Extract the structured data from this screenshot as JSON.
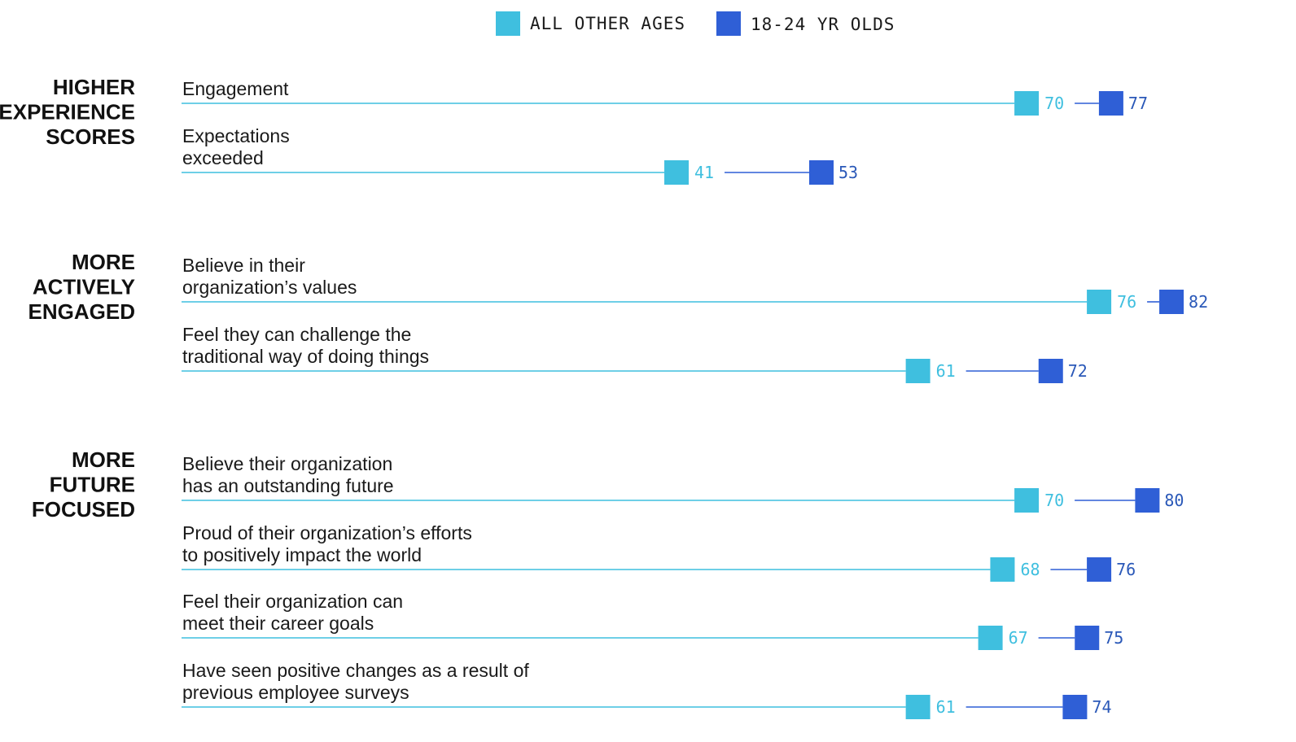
{
  "chart_data": {
    "type": "dot-plot",
    "xlim": [
      0,
      100
    ],
    "series": [
      {
        "name": "ALL OTHER AGES",
        "color": "#3fbfdf"
      },
      {
        "name": "18-24 YR OLDS",
        "color": "#2f5fd6"
      }
    ],
    "groups": [
      {
        "label": [
          "HIGHER",
          "EXPERIENCE",
          "SCORES"
        ],
        "rows": [
          {
            "label": [
              "Engagement"
            ],
            "values": [
              70,
              77
            ]
          },
          {
            "label": [
              "Expectations",
              "exceeded"
            ],
            "values": [
              41,
              53
            ]
          }
        ]
      },
      {
        "label": [
          "MORE",
          "ACTIVELY",
          "ENGAGED"
        ],
        "rows": [
          {
            "label": [
              "Believe in their",
              "organization’s values"
            ],
            "values": [
              76,
              82
            ]
          },
          {
            "label": [
              "Feel they can challenge the",
              "traditional way of doing things"
            ],
            "values": [
              61,
              72
            ]
          }
        ]
      },
      {
        "label": [
          "MORE",
          "FUTURE",
          "FOCUSED"
        ],
        "rows": [
          {
            "label": [
              "Believe their organization",
              "has an outstanding future"
            ],
            "values": [
              70,
              80
            ]
          },
          {
            "label": [
              "Proud of their organization’s efforts",
              "to positively impact the world"
            ],
            "values": [
              68,
              76
            ]
          },
          {
            "label": [
              "Feel their organization can",
              "meet their career goals"
            ],
            "values": [
              67,
              75
            ]
          },
          {
            "label": [
              "Have seen positive changes as a result of",
              "previous employee surveys"
            ],
            "values": [
              61,
              74
            ]
          }
        ]
      }
    ]
  }
}
